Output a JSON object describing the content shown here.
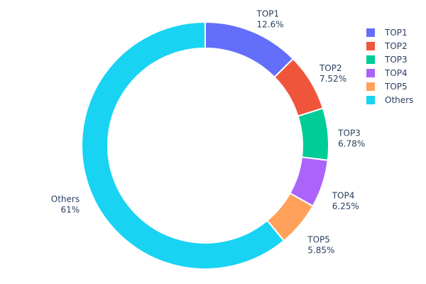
{
  "chart_data": {
    "type": "pie",
    "hole": true,
    "categories": [
      "TOP1",
      "TOP2",
      "TOP3",
      "TOP4",
      "TOP5",
      "Others"
    ],
    "values": [
      12.6,
      7.52,
      6.78,
      6.25,
      5.85,
      61
    ],
    "value_labels": [
      "12.6%",
      "7.52%",
      "6.78%",
      "6.25%",
      "5.85%",
      "61%"
    ],
    "colors": [
      "#636efa",
      "#EF553B",
      "#00cc96",
      "#ab63fa",
      "#FFA15A",
      "#19d3f3"
    ],
    "direction": "clockwise",
    "legend_position": "top-right"
  }
}
